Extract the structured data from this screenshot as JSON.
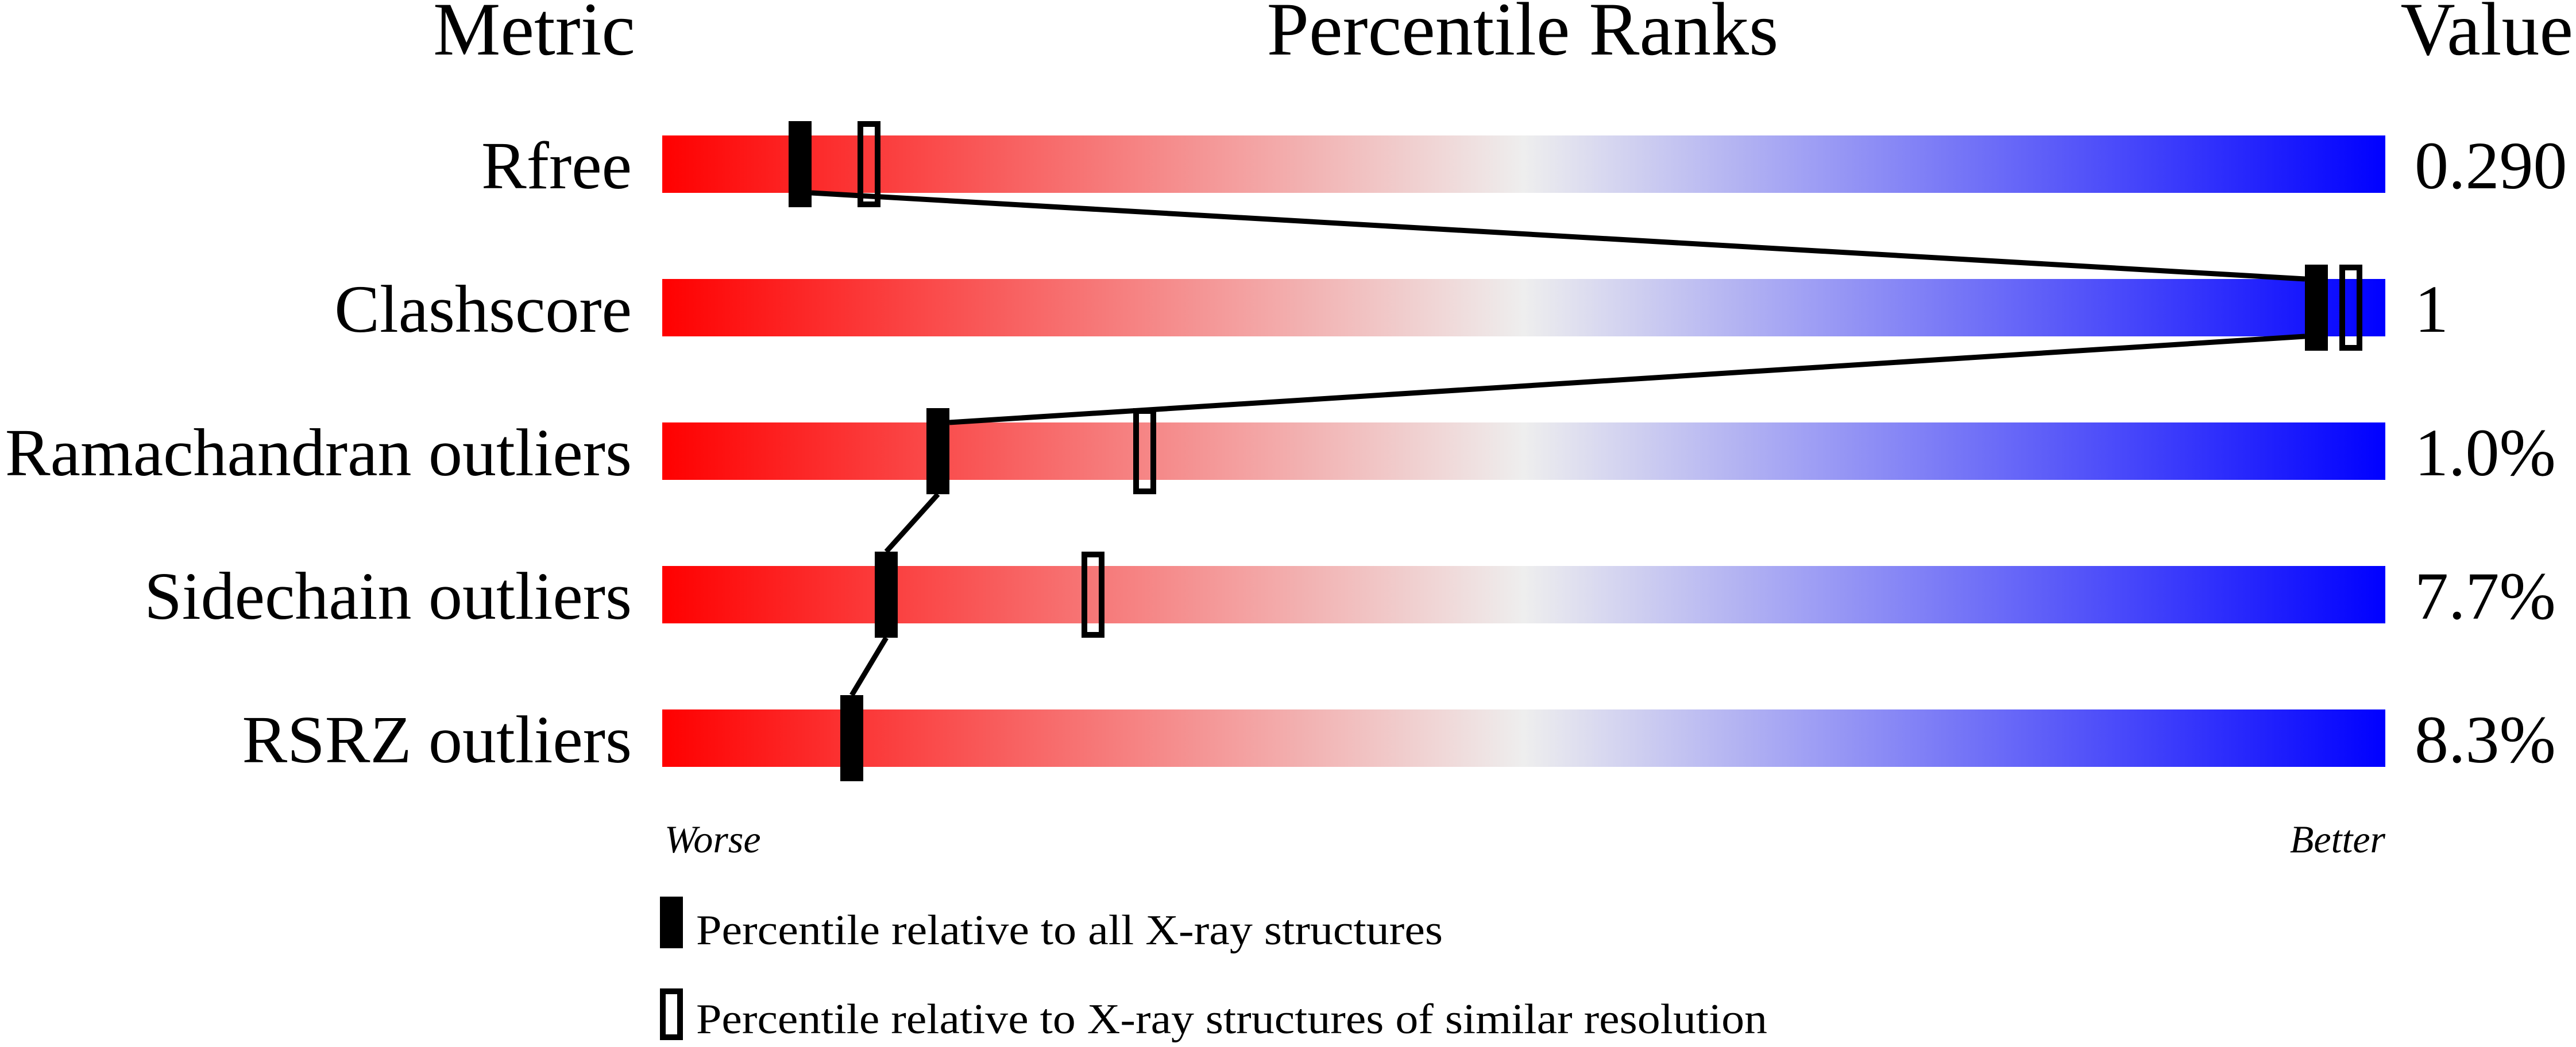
{
  "chart_data": {
    "type": "percentile-slider",
    "headers": {
      "metric": "Metric",
      "ranks": "Percentile Ranks",
      "value": "Value"
    },
    "axis": {
      "left_label": "Worse",
      "right_label": "Better",
      "range": [
        0,
        100
      ]
    },
    "colors": {
      "worse": "#ff0000",
      "middle": "#eeeeee",
      "better": "#0000ff"
    },
    "rows": [
      {
        "metric": "Rfree",
        "value": "0.290",
        "percentile_all": 8,
        "percentile_similar": 12
      },
      {
        "metric": "Clashscore",
        "value": "1",
        "percentile_all": 96,
        "percentile_similar": 98
      },
      {
        "metric": "Ramachandran outliers",
        "value": "1.0%",
        "percentile_all": 16,
        "percentile_similar": 28
      },
      {
        "metric": "Sidechain outliers",
        "value": "7.7%",
        "percentile_all": 13,
        "percentile_similar": 25
      },
      {
        "metric": "RSRZ outliers",
        "value": "8.3%",
        "percentile_all": 11,
        "percentile_similar": null
      }
    ],
    "legend": [
      {
        "marker": "filled",
        "label": "Percentile relative to all X-ray structures"
      },
      {
        "marker": "open",
        "label": "Percentile relative to X-ray structures of similar resolution"
      }
    ]
  }
}
